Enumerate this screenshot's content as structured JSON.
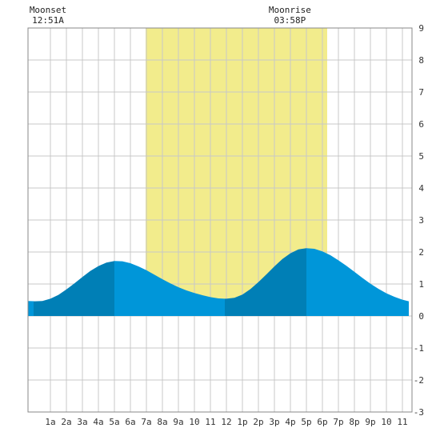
{
  "chart_data": {
    "type": "area",
    "title": "",
    "xlabel": "",
    "ylabel": "",
    "x_unit": "hour of day",
    "xlim": [
      -0.4,
      23.4
    ],
    "ylim": [
      -3,
      9
    ],
    "grid": true,
    "x_tick_labels": [
      "1a",
      "2a",
      "3a",
      "4a",
      "5a",
      "6a",
      "7a",
      "8a",
      "9a",
      "10",
      "11",
      "12",
      "1p",
      "2p",
      "3p",
      "4p",
      "5p",
      "6p",
      "7p",
      "8p",
      "9p",
      "10",
      "11"
    ],
    "y_tick_labels": [
      "-3",
      "-2",
      "-1",
      "0",
      "1",
      "2",
      "3",
      "4",
      "5",
      "6",
      "7",
      "8",
      "9"
    ],
    "daylight": {
      "start_hour": 6.95,
      "end_hour": 18.3,
      "color": "#f2ec8c"
    },
    "moon_events": [
      {
        "label": "Moonset",
        "time": "12:51A",
        "hour": 0.85
      },
      {
        "label": "Moonrise",
        "time": "03:58P",
        "hour": 15.97
      }
    ],
    "tide_series": {
      "name": "",
      "x": [
        -0.4,
        0,
        0.5,
        1,
        1.5,
        2,
        2.5,
        3,
        3.5,
        4,
        4.5,
        5,
        5.5,
        6,
        6.5,
        7,
        7.5,
        8,
        8.5,
        9,
        9.5,
        10,
        10.5,
        11,
        11.5,
        12,
        12.5,
        13,
        13.5,
        14,
        14.5,
        15,
        15.5,
        16,
        16.5,
        17,
        17.5,
        18,
        18.5,
        19,
        19.5,
        20,
        20.5,
        21,
        21.5,
        22,
        22.5,
        23,
        23.4
      ],
      "y": [
        0.47,
        0.46,
        0.47,
        0.54,
        0.66,
        0.83,
        1.02,
        1.22,
        1.41,
        1.56,
        1.67,
        1.72,
        1.71,
        1.65,
        1.55,
        1.43,
        1.29,
        1.15,
        1.02,
        0.9,
        0.8,
        0.72,
        0.65,
        0.59,
        0.55,
        0.54,
        0.57,
        0.67,
        0.84,
        1.06,
        1.3,
        1.55,
        1.78,
        1.96,
        2.08,
        2.12,
        2.1,
        2.02,
        1.9,
        1.74,
        1.57,
        1.38,
        1.19,
        1.01,
        0.85,
        0.71,
        0.6,
        0.51,
        0.46
      ]
    },
    "extremes": [
      {
        "type": "low",
        "hour": -0.05,
        "height": 0.46
      },
      {
        "type": "high",
        "hour": 5.0,
        "height": 1.72
      },
      {
        "type": "low",
        "hour": 11.9,
        "height": 0.54
      },
      {
        "type": "high",
        "hour": 17.0,
        "height": 2.12
      }
    ],
    "colors": {
      "tide_light": "#0096d9",
      "tide_dark": "#007fb6",
      "grid": "#c8c8c8",
      "border": "#888888",
      "background": "#ffffff"
    }
  }
}
